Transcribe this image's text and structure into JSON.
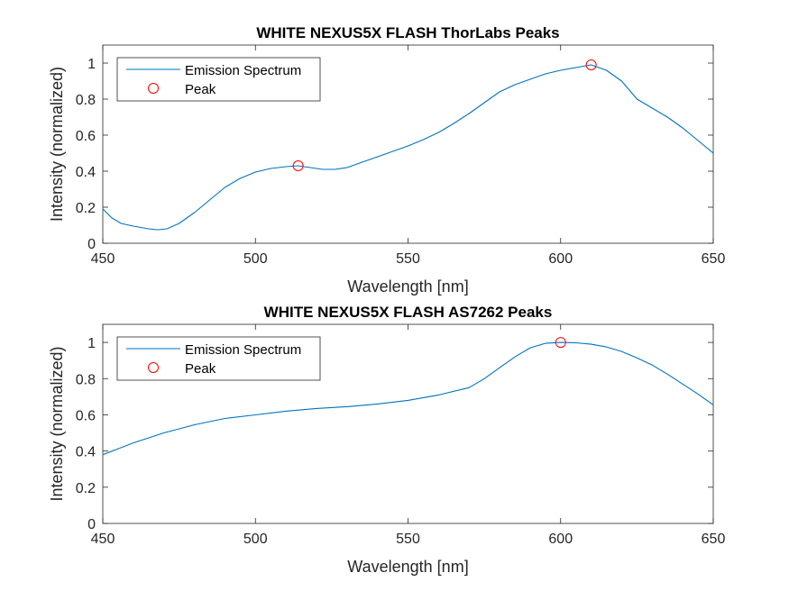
{
  "chart_data": [
    {
      "type": "line",
      "title": "WHITE NEXUS5X FLASH ThorLabs Peaks",
      "xlabel": "Wavelength [nm]",
      "ylabel": "Intensity (normalized)",
      "xlim": [
        450,
        650
      ],
      "ylim": [
        0,
        1.1
      ],
      "xticks": [
        450,
        500,
        550,
        600,
        650
      ],
      "yticks": [
        0,
        0.2,
        0.4,
        0.6,
        0.8,
        1
      ],
      "xtick_labels": [
        "450",
        "500",
        "550",
        "600",
        "650"
      ],
      "ytick_labels": [
        "0",
        "0.2",
        "0.4",
        "0.6",
        "0.8",
        "1"
      ],
      "legend_position": "top-left",
      "series": [
        {
          "name": "Emission Spectrum",
          "color": "#0072bd",
          "x": [
            450,
            453,
            456,
            460,
            465,
            468,
            471,
            475,
            480,
            485,
            490,
            495,
            500,
            505,
            510,
            514,
            518,
            522,
            526,
            530,
            535,
            540,
            545,
            550,
            555,
            560,
            565,
            570,
            575,
            580,
            585,
            590,
            595,
            600,
            605,
            610,
            615,
            620,
            625,
            630,
            635,
            640,
            645,
            650
          ],
          "y": [
            0.19,
            0.14,
            0.11,
            0.095,
            0.08,
            0.075,
            0.08,
            0.11,
            0.17,
            0.24,
            0.31,
            0.36,
            0.395,
            0.415,
            0.425,
            0.43,
            0.42,
            0.41,
            0.41,
            0.42,
            0.45,
            0.48,
            0.51,
            0.54,
            0.575,
            0.615,
            0.665,
            0.72,
            0.78,
            0.84,
            0.88,
            0.91,
            0.94,
            0.96,
            0.975,
            0.99,
            0.96,
            0.9,
            0.8,
            0.75,
            0.7,
            0.64,
            0.57,
            0.5
          ]
        },
        {
          "name": "Peak",
          "color": "#ff0000",
          "marker": "circle",
          "x": [
            514,
            610
          ],
          "y": [
            0.43,
            0.99
          ]
        }
      ]
    },
    {
      "type": "line",
      "title": "WHITE NEXUS5X FLASH AS7262 Peaks",
      "xlabel": "Wavelength [nm]",
      "ylabel": "Intensity (normalized)",
      "xlim": [
        450,
        650
      ],
      "ylim": [
        0,
        1.1
      ],
      "xticks": [
        450,
        500,
        550,
        600,
        650
      ],
      "yticks": [
        0,
        0.2,
        0.4,
        0.6,
        0.8,
        1
      ],
      "xtick_labels": [
        "450",
        "500",
        "550",
        "600",
        "650"
      ],
      "ytick_labels": [
        "0",
        "0.2",
        "0.4",
        "0.6",
        "0.8",
        "1"
      ],
      "legend_position": "top-left",
      "series": [
        {
          "name": "Emission Spectrum",
          "color": "#0072bd",
          "x": [
            450,
            460,
            470,
            480,
            490,
            500,
            510,
            520,
            530,
            540,
            550,
            560,
            570,
            575,
            580,
            585,
            590,
            595,
            600,
            605,
            610,
            615,
            620,
            625,
            630,
            635,
            640,
            645,
            650
          ],
          "y": [
            0.38,
            0.445,
            0.5,
            0.545,
            0.58,
            0.6,
            0.62,
            0.635,
            0.645,
            0.66,
            0.68,
            0.71,
            0.75,
            0.8,
            0.86,
            0.92,
            0.97,
            0.995,
            1.0,
            0.998,
            0.99,
            0.975,
            0.95,
            0.915,
            0.875,
            0.825,
            0.77,
            0.715,
            0.655
          ]
        },
        {
          "name": "Peak",
          "color": "#ff0000",
          "marker": "circle",
          "x": [
            600
          ],
          "y": [
            1.0
          ]
        }
      ]
    }
  ]
}
